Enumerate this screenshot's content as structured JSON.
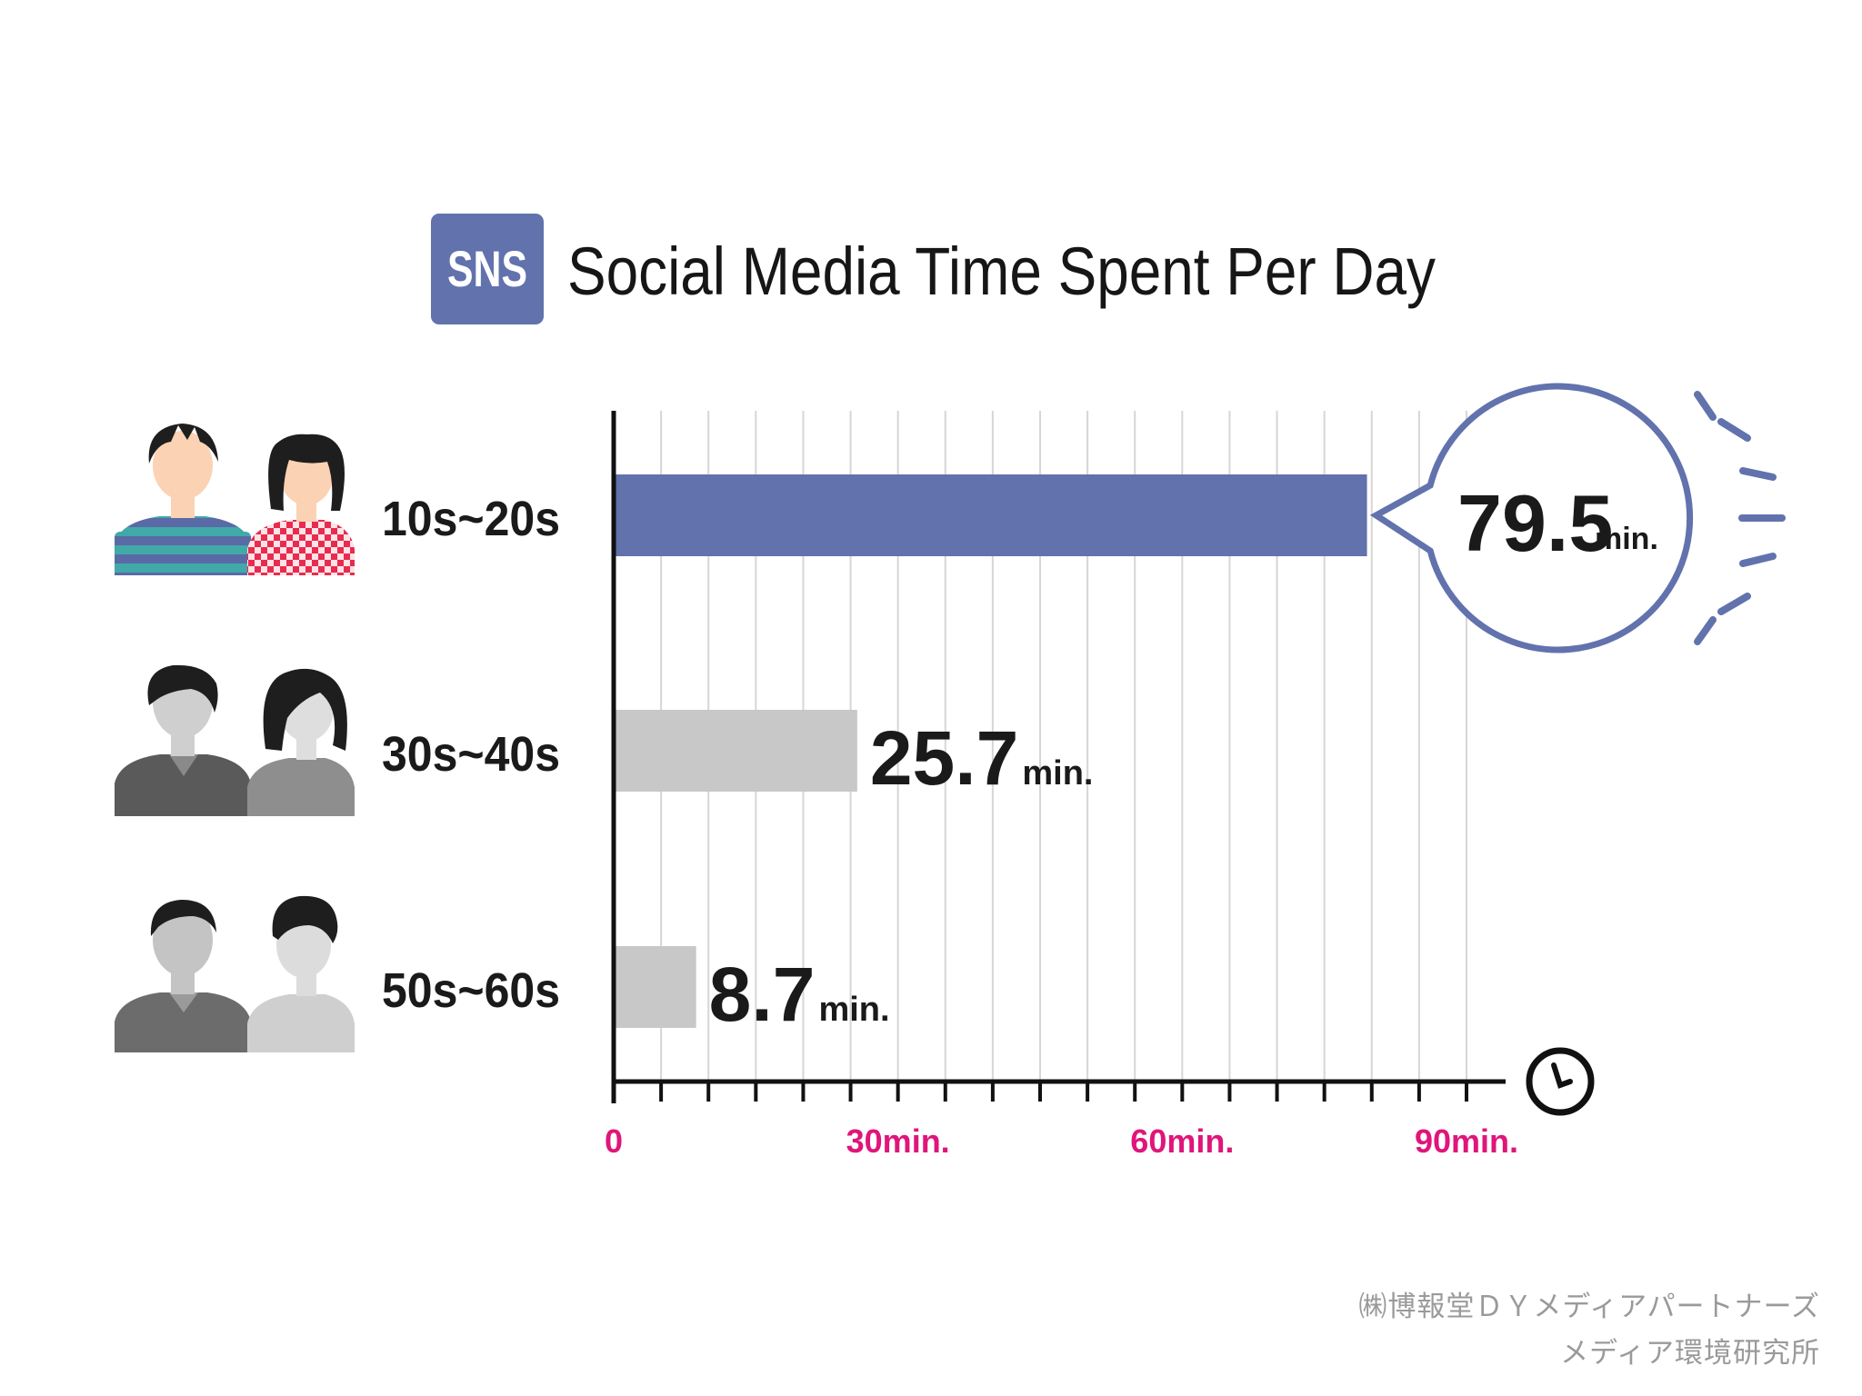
{
  "badge": {
    "label": "SNS",
    "color": "#6172ad"
  },
  "title": "Social Media Time Spent Per Day",
  "colors": {
    "highlight": "#6172ad",
    "bar_default": "#c8c8c8",
    "tick_label": "#e0157a",
    "axis": "#111111",
    "grid": "#d6d6d6"
  },
  "chart_data": {
    "type": "bar",
    "orientation": "horizontal",
    "categories": [
      "10s~20s",
      "30s~40s",
      "50s~60s"
    ],
    "values": [
      79.5,
      25.7,
      8.7
    ],
    "value_labels": [
      "79.5",
      "25.7",
      "8.7"
    ],
    "unit_label": "min.",
    "highlight_index": 0,
    "xlim": [
      0,
      90
    ],
    "x_ticks": [
      {
        "value": 0,
        "label": "0"
      },
      {
        "value": 30,
        "label": "30min."
      },
      {
        "value": 60,
        "label": "60min."
      },
      {
        "value": 90,
        "label": "90min."
      }
    ],
    "minor_tick_step": 5,
    "grid": true,
    "xlabel": "",
    "ylabel": "",
    "axis_icon": "clock-icon"
  },
  "people_icons": [
    {
      "group": "10s~20s",
      "style": "young-color"
    },
    {
      "group": "30s~40s",
      "style": "middle-gray"
    },
    {
      "group": "50s~60s",
      "style": "senior-gray"
    }
  ],
  "credit": {
    "line1": "㈱博報堂ＤＹメディアパートナーズ",
    "line2": "メディア環境研究所"
  }
}
